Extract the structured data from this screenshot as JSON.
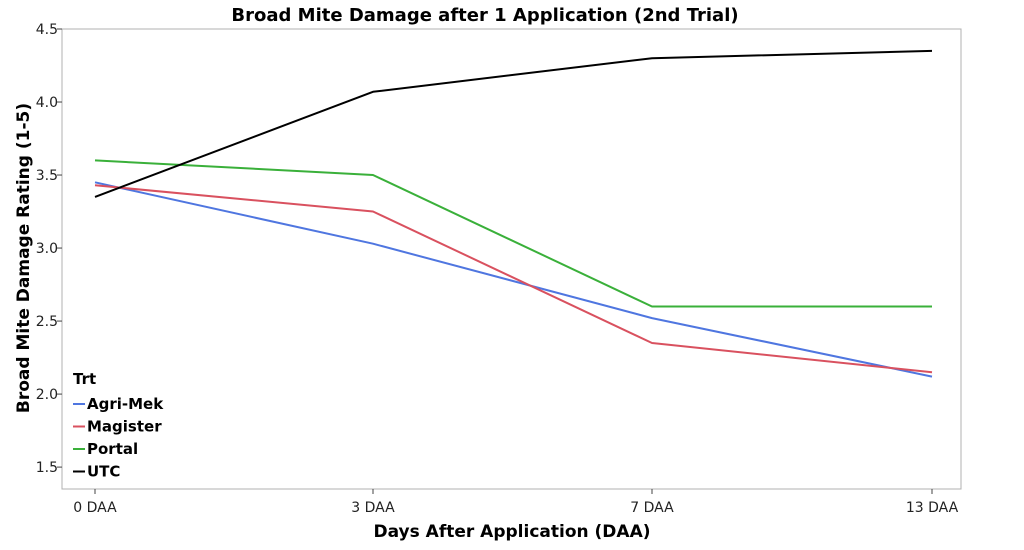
{
  "chart_data": {
    "type": "line",
    "title": "Broad Mite Damage after 1 Application (2nd Trial)",
    "xlabel": "Days After Application (DAA)",
    "ylabel": "Broad Mite Damage Rating (1-5)",
    "categories": [
      "0 DAA",
      "3 DAA",
      "7 DAA",
      "13 DAA"
    ],
    "ylim": [
      1.35,
      4.5
    ],
    "yticks": [
      "1.5",
      "2.0",
      "2.5",
      "3.0",
      "3.5",
      "4.0",
      "4.5"
    ],
    "grid": false,
    "legend": {
      "title": "Trt",
      "placement": "bottom-left"
    },
    "series": [
      {
        "name": "Agri-Mek",
        "color": "#4f76e0",
        "values": [
          3.45,
          3.03,
          2.52,
          2.12
        ]
      },
      {
        "name": "Magister",
        "color": "#d9515f",
        "values": [
          3.43,
          3.25,
          2.35,
          2.15
        ]
      },
      {
        "name": "Portal",
        "color": "#3ab03a",
        "values": [
          3.6,
          3.5,
          2.6,
          2.6
        ]
      },
      {
        "name": "UTC",
        "color": "#000000",
        "values": [
          3.35,
          4.07,
          4.3,
          4.35
        ]
      }
    ]
  }
}
